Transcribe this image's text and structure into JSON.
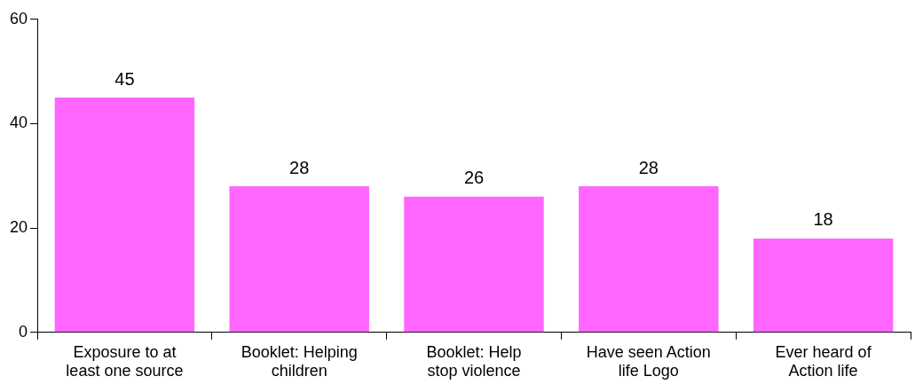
{
  "chart_data": {
    "type": "bar",
    "categories": [
      "Exposure to at least one source",
      "Booklet: Helping children",
      "Booklet: Help stop violence",
      "Have seen Action life Logo",
      "Ever heard of Action life"
    ],
    "values": [
      45,
      28,
      26,
      28,
      18
    ],
    "color": "#ff66ff",
    "ylim": [
      0,
      60
    ],
    "yticks": [
      0,
      20,
      40,
      60
    ],
    "grid": false,
    "legend": false,
    "data_labels": true
  }
}
